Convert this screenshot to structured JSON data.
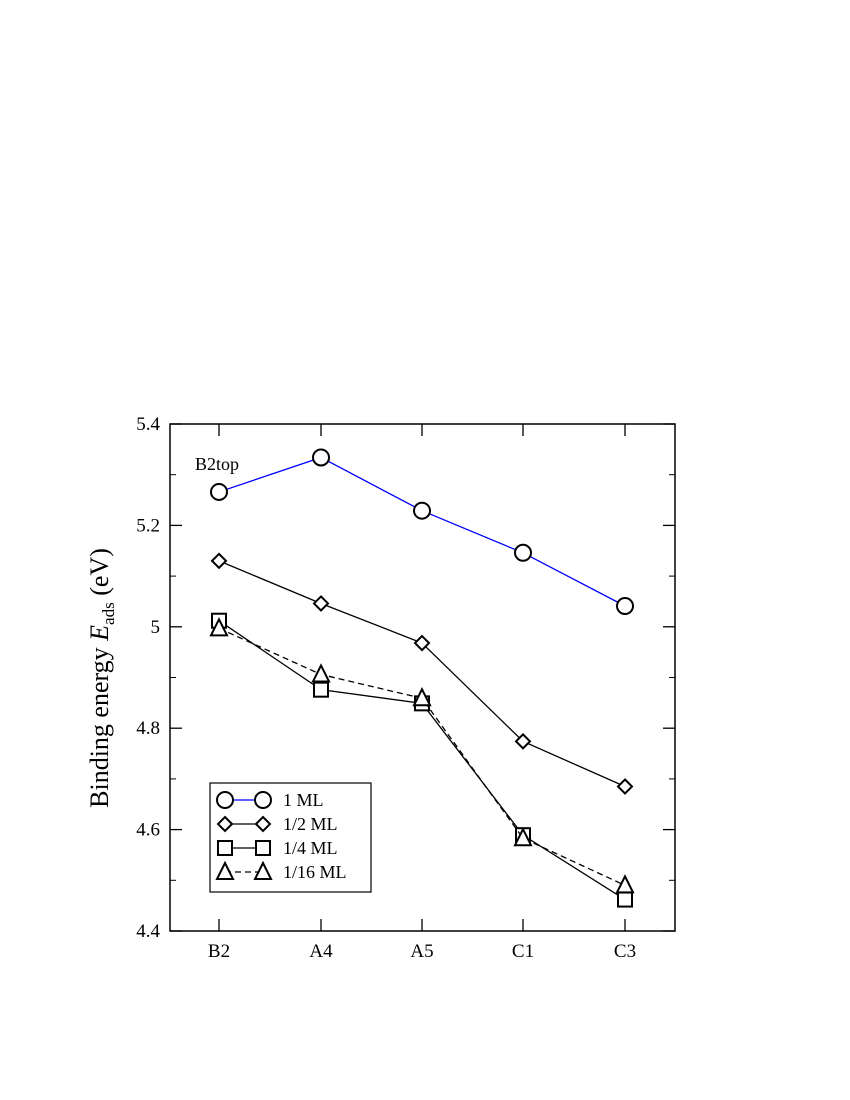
{
  "chart_data": {
    "type": "line",
    "categories": [
      "B2",
      "A4",
      "A5",
      "C1",
      "C3"
    ],
    "ylabel": {
      "prefix": "Binding energy ",
      "symbol": "E",
      "subscript": "ads",
      "unit": " (eV)"
    },
    "ylim": [
      4.4,
      5.4
    ],
    "yticks": [
      "4.4",
      "4.6",
      "4.8",
      "5",
      "5.2",
      "5.4"
    ],
    "grid": false,
    "legend_position": "bottom-left",
    "annotations": [
      {
        "text": "B2top",
        "category": "B2",
        "series": "1 ML"
      }
    ],
    "series": [
      {
        "name": "1 ML",
        "marker": "circle",
        "line_color": "#0000ff",
        "dash": false,
        "values": [
          5.266,
          5.334,
          5.229,
          5.146,
          5.041
        ]
      },
      {
        "name": "1/2 ML",
        "marker": "diamond",
        "line_color": "#000000",
        "dash": false,
        "values": [
          5.13,
          5.046,
          4.968,
          4.774,
          4.685
        ]
      },
      {
        "name": "1/4 ML",
        "marker": "square",
        "line_color": "#000000",
        "dash": false,
        "values": [
          5.012,
          4.876,
          4.849,
          4.589,
          4.462
        ]
      },
      {
        "name": "1/16 ML",
        "marker": "triangle",
        "line_color": "#000000",
        "dash": true,
        "values": [
          4.997,
          4.906,
          4.859,
          4.583,
          4.49
        ]
      }
    ]
  }
}
